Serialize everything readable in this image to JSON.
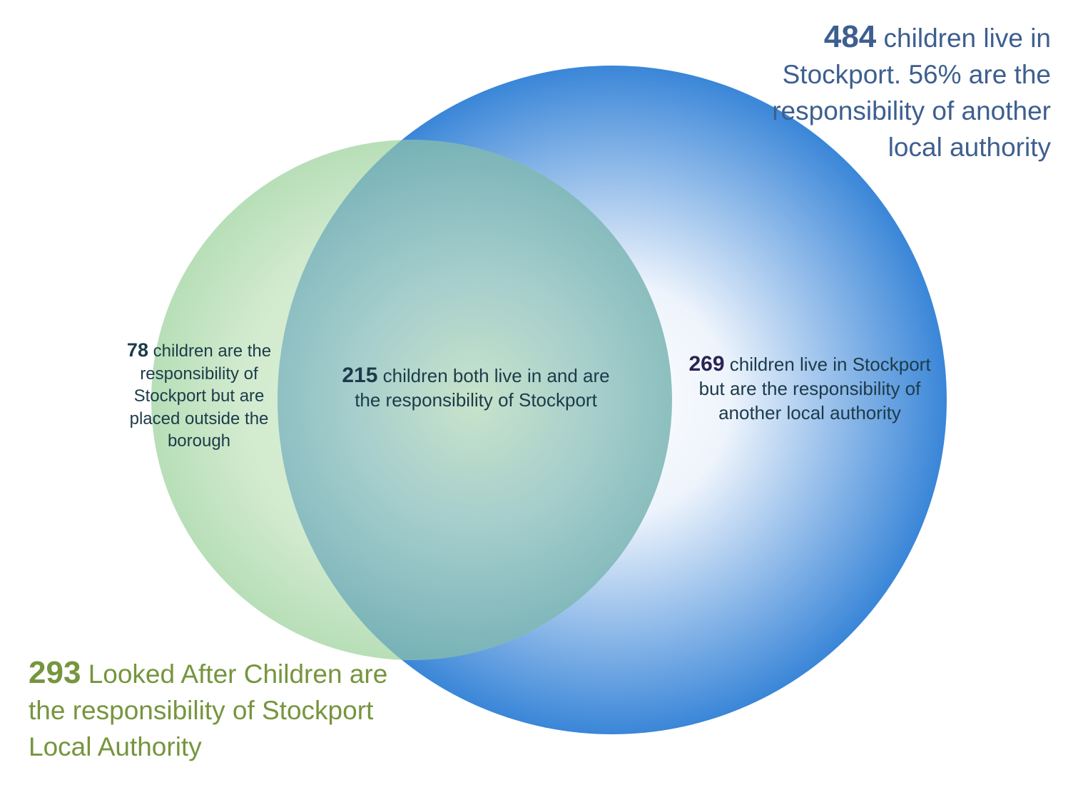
{
  "colors": {
    "blue_circle_edge": "#3a86d8",
    "blue_circle_center": "#ffffff",
    "green_circle_edge": "#b2dcb2",
    "green_circle_center": "#dcefd8",
    "blue_text": "#3d5f8f",
    "green_text": "#76953e",
    "dark_text": "#1c3b4a",
    "purple_number": "#2b2352"
  },
  "sets": {
    "stockport_residents": {
      "number": "484",
      "text": " children live in Stockport. 56% are the responsibility of another local authority"
    },
    "stockport_responsibility": {
      "number": "293",
      "text": " Looked After Children are the responsibility of Stockport Local Authority"
    }
  },
  "regions": {
    "responsibility_only": {
      "number": "78",
      "text": " children are the responsibility of Stockport but are placed outside the borough"
    },
    "both": {
      "number": "215",
      "text": " children both live in and are the responsibility of Stockport"
    },
    "residents_only": {
      "number": "269",
      "text": " children live in Stockport but are the responsibility of another local authority"
    }
  }
}
